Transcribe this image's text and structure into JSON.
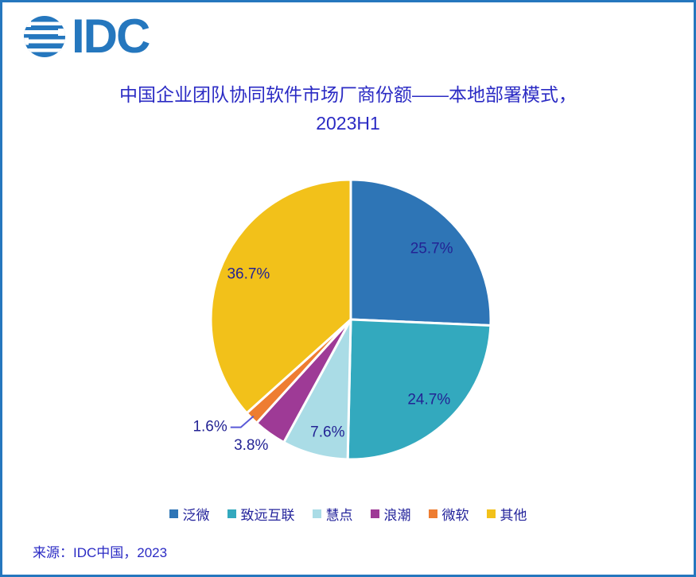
{
  "logo": {
    "text": "IDC"
  },
  "title": {
    "line1": "中国企业团队协同软件市场厂商份额——本地部署模式，",
    "line2": "2023H1"
  },
  "footer": {
    "source": "来源：IDC中国，2023"
  },
  "colors": {
    "border": "#2577BE",
    "logo_blue": "#2577BE",
    "title_text": "#2B2BC4",
    "label_text": "#232394",
    "leader_line": "#5A5AD8"
  },
  "chart_data": {
    "type": "pie",
    "title": "中国企业团队协同软件市场厂商份额——本地部署模式，2023H1",
    "legend_position": "bottom",
    "start_angle_deg": 0,
    "direction": "clockwise",
    "slices": [
      {
        "name": "泛微",
        "value": 25.7,
        "display": "25.7%",
        "color": "#2E75B6",
        "label_placement": "inside"
      },
      {
        "name": "致远互联",
        "value": 24.7,
        "display": "24.7%",
        "color": "#33A9BE",
        "label_placement": "inside"
      },
      {
        "name": "慧点",
        "value": 7.6,
        "display": "7.6%",
        "color": "#AADCE6",
        "label_placement": "inside"
      },
      {
        "name": "浪潮",
        "value": 3.8,
        "display": "3.8%",
        "color": "#9E3A96",
        "label_placement": "outside"
      },
      {
        "name": "微软",
        "value": 1.6,
        "display": "1.6%",
        "color": "#EE7D31",
        "label_placement": "leader"
      },
      {
        "name": "其他",
        "value": 36.7,
        "display": "36.7%",
        "color": "#F2C11A",
        "label_placement": "inside"
      }
    ],
    "source": "来源：IDC中国，2023"
  }
}
